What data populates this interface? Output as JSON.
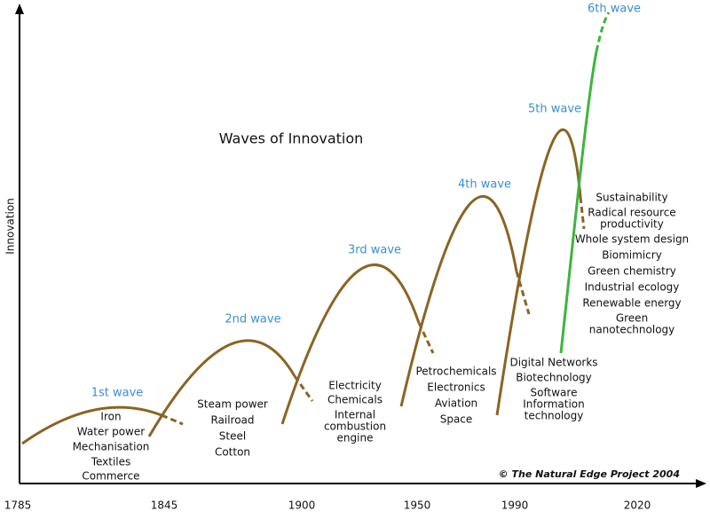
{
  "title": "Waves of Innovation",
  "y_axis_label": "Innovation",
  "x_axis_ticks": [
    "1785",
    "1845",
    "1900",
    "1950",
    "1990",
    "2020"
  ],
  "waves": [
    {
      "label": "1st wave",
      "items": [
        "Iron",
        "Water power",
        "Mechanisation",
        "Textiles",
        "Commerce"
      ]
    },
    {
      "label": "2nd wave",
      "items": [
        "Steam power",
        "Railroad",
        "Steel",
        "Cotton"
      ]
    },
    {
      "label": "3rd wave",
      "items": [
        "Electricity",
        "Chemicals",
        "Internal",
        "combustion",
        "engine"
      ]
    },
    {
      "label": "4th wave",
      "items": [
        "Petrochemicals",
        "Electronics",
        "Aviation",
        "Space"
      ]
    },
    {
      "label": "5th wave",
      "items": [
        "Digital Networks",
        "Biotechnology",
        "Software",
        "Information",
        "technology"
      ]
    },
    {
      "label": "6th wave",
      "items": [
        "Sustainability",
        "Radical resource",
        "productivity",
        "Whole system design",
        "Biomimicry",
        "Green chemistry",
        "Industrial ecology",
        "Renewable energy",
        "Green",
        "nanotechnology"
      ]
    }
  ],
  "credit": "© The Natural Edge Project 2004"
}
